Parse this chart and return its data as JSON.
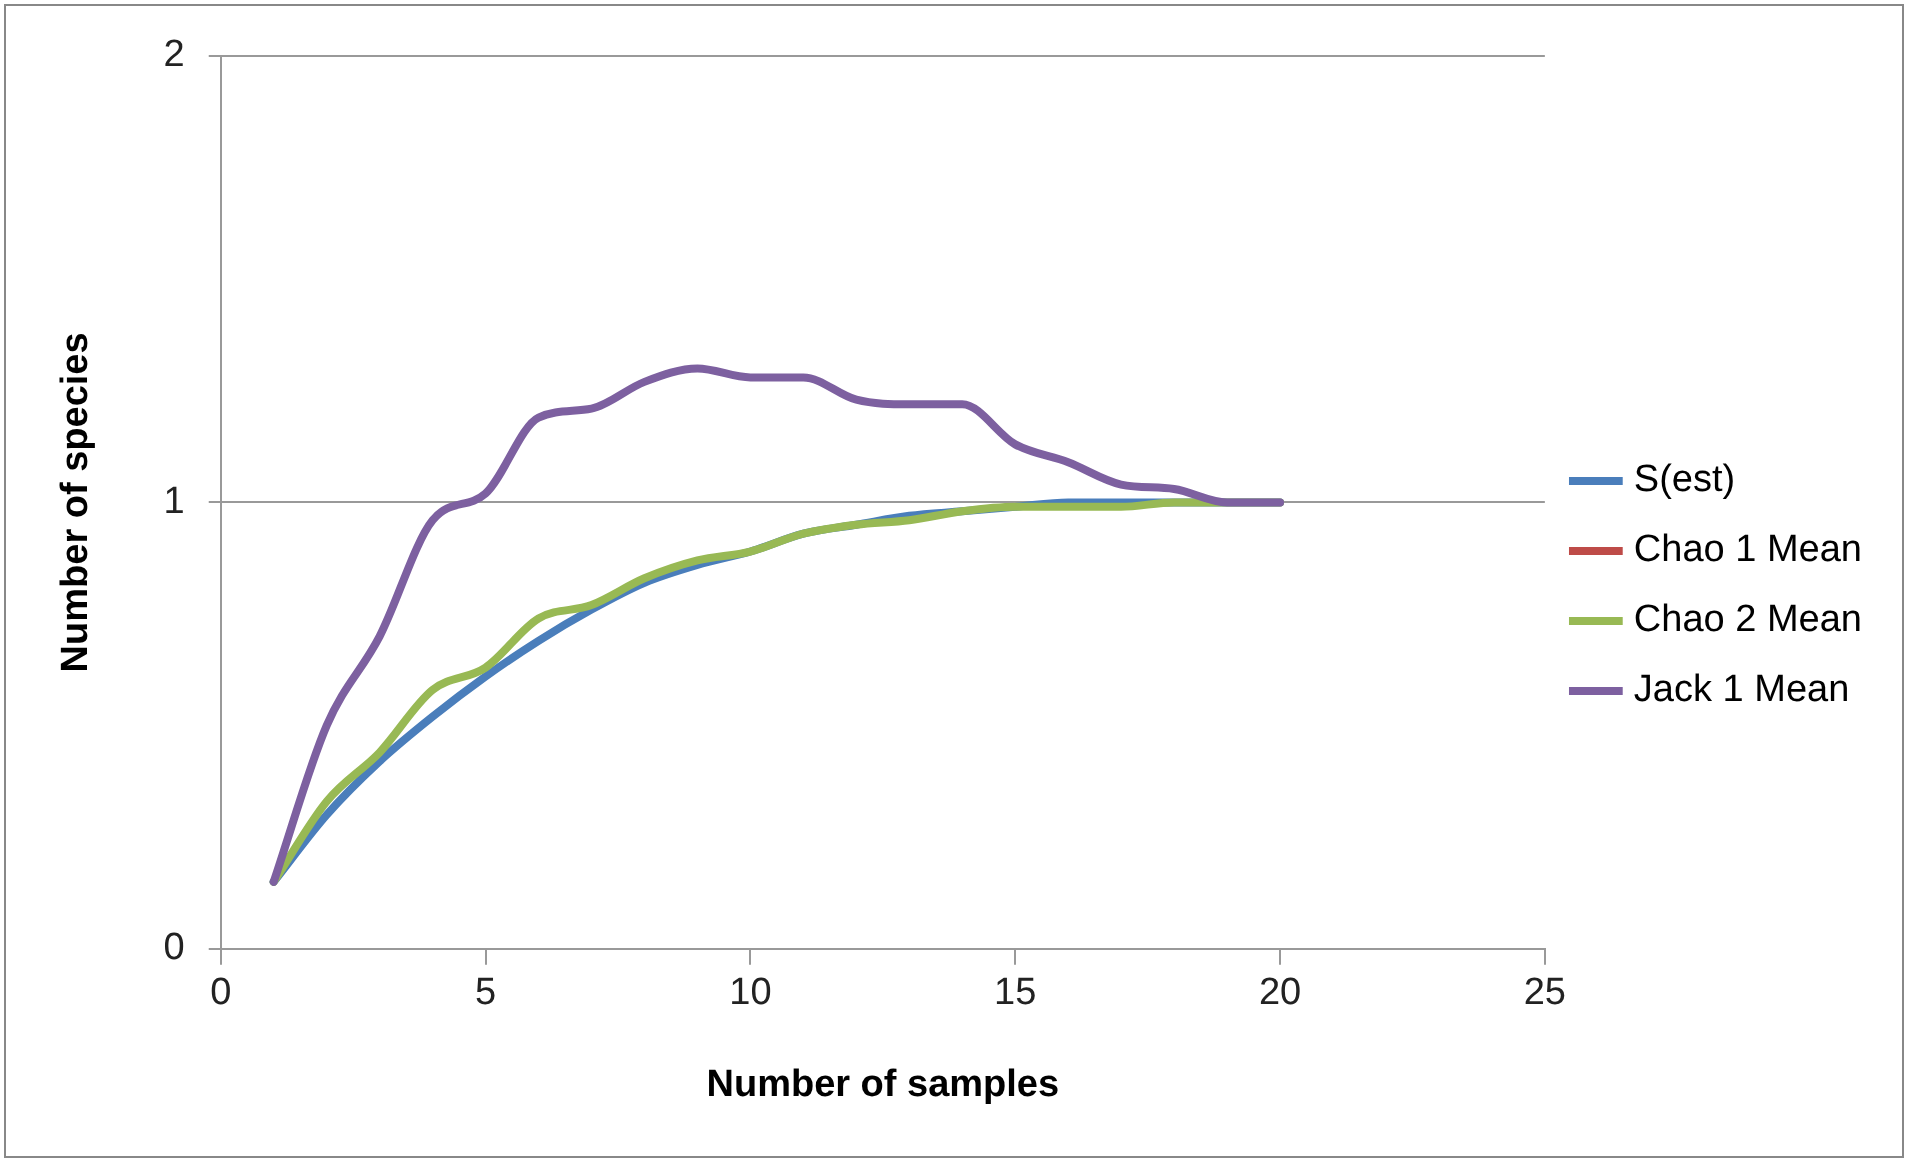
{
  "chart_data": {
    "type": "line",
    "xlabel": "Number of samples",
    "ylabel": "Number of species",
    "x": [
      1,
      2,
      3,
      4,
      5,
      6,
      7,
      8,
      9,
      10,
      11,
      12,
      13,
      14,
      15,
      16,
      17,
      18,
      19,
      20
    ],
    "series": [
      {
        "name": "S(est)",
        "color": "#4a7ebb",
        "values": [
          0.15,
          0.3,
          0.42,
          0.52,
          0.61,
          0.69,
          0.76,
          0.82,
          0.86,
          0.89,
          0.93,
          0.95,
          0.97,
          0.98,
          0.99,
          1.0,
          1.0,
          1.0,
          1.0,
          1.0
        ]
      },
      {
        "name": "Chao 1 Mean",
        "color": "#be4b48",
        "values": [
          null,
          null,
          null,
          null,
          null,
          null,
          null,
          null,
          null,
          null,
          null,
          null,
          null,
          null,
          null,
          null,
          null,
          null,
          null,
          null
        ]
      },
      {
        "name": "Chao 2 Mean",
        "color": "#98b954",
        "values": [
          0.15,
          0.33,
          0.44,
          0.58,
          0.63,
          0.74,
          0.77,
          0.83,
          0.87,
          0.89,
          0.93,
          0.95,
          0.96,
          0.98,
          0.99,
          0.99,
          0.99,
          1.0,
          1.0,
          1.0
        ]
      },
      {
        "name": "Jack 1 Mean",
        "color": "#7d60a0",
        "values": [
          0.15,
          0.5,
          0.7,
          0.96,
          1.02,
          1.19,
          1.21,
          1.27,
          1.3,
          1.28,
          1.28,
          1.23,
          1.22,
          1.22,
          1.13,
          1.09,
          1.04,
          1.03,
          1.0,
          1.0
        ]
      }
    ],
    "xlim": [
      0,
      25
    ],
    "xticks": [
      0,
      5,
      10,
      15,
      20,
      25
    ],
    "ylim": [
      0,
      2
    ],
    "yticks": [
      0,
      1,
      2
    ],
    "grid": "y",
    "legend": "right",
    "marker": "none",
    "line_style": "solid"
  }
}
